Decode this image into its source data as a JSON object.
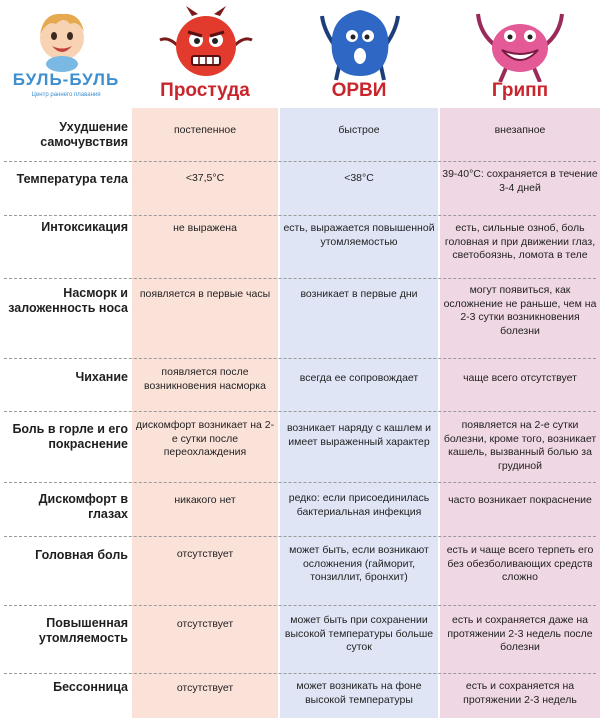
{
  "logo": {
    "title": "БУЛЬ-БУЛЬ",
    "subtitle": "Центр раннего плавания"
  },
  "columns": [
    "Простуда",
    "ОРВИ",
    "Грипп"
  ],
  "colors": {
    "cold_bg": "#fbe2d9",
    "orvi_bg": "#dfe5f5",
    "flu_bg": "#efd7e3",
    "header_text": "#c9252c"
  },
  "rows": [
    {
      "label": "Ухудшение самочувствия",
      "cold": "постепенное",
      "orvi": "быстрое",
      "flu": "внезапное"
    },
    {
      "label": "Температура тела",
      "cold": "<37,5°C",
      "orvi": "<38°C",
      "flu": "39-40°C: сохраняется в течение 3-4 дней"
    },
    {
      "label": "Интоксикация",
      "cold": "не выражена",
      "orvi": "есть, выражается повышенной утомляемостью",
      "flu": "есть, сильные озноб, боль головная и при движении глаз, светобоязнь, ломота в теле"
    },
    {
      "label": "Насморк и заложенность носа",
      "cold": "появляется в первые часы",
      "orvi": "возникает в первые дни",
      "flu": "могут появиться, как осложнение не раньше, чем на 2-3 сутки возникновения болезни"
    },
    {
      "label": "Чихание",
      "cold": "появляется после возникновения насморка",
      "orvi": "всегда ее сопровождает",
      "flu": "чаще всего отсутствует"
    },
    {
      "label": "Боль в горле и его покраснение",
      "cold": "дискомфорт возникает на 2-е сутки после переохлаждения",
      "orvi": "возникает наряду с кашлем и имеет выраженный характер",
      "flu": "появляется на 2-е сутки болезни, кроме того, возникает кашель, вызванный болью за грудиной"
    },
    {
      "label": "Дискомфорт в глазах",
      "cold": "никакого нет",
      "orvi": "редко: если присоединилась бактериальная инфекция",
      "flu": "часто возникает покраснение"
    },
    {
      "label": "Головная боль",
      "cold": "отсутствует",
      "orvi": "может быть, если возникают осложнения (гайморит, тонзиллит, бронхит)",
      "flu": "есть и чаще всего терпеть его без обезболивающих средств сложно"
    },
    {
      "label": "Повышенная утомляемость",
      "cold": "отсутствует",
      "orvi": "может быть при сохранении высокой температуры больше суток",
      "flu": "есть и сохраняется даже на протяжении 2-3 недель после болезни"
    },
    {
      "label": "Бессонница",
      "cold": "отсутствует",
      "orvi": "может возникать на фоне высокой температуры",
      "flu": "есть и сохраняется на протяжении 2-3 недель"
    }
  ]
}
